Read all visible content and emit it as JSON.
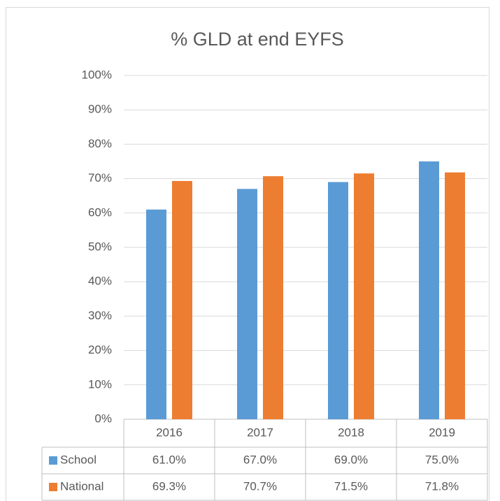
{
  "chart_data": {
    "type": "bar",
    "title": "% GLD at end EYFS",
    "categories": [
      "2016",
      "2017",
      "2018",
      "2019"
    ],
    "series": [
      {
        "name": "School",
        "color": "#5b9bd5",
        "values": [
          61,
          67,
          69,
          75
        ],
        "value_labels": [
          "61.0%",
          "67.0%",
          "69.0%",
          "75.0%"
        ]
      },
      {
        "name": "National",
        "color": "#ed7d31",
        "values": [
          69.3,
          70.7,
          71.5,
          71.8
        ],
        "value_labels": [
          "69.3%",
          "70.7%",
          "71.5%",
          "71.8%"
        ]
      }
    ],
    "ylim": [
      0,
      100
    ],
    "yticks": [
      {
        "value": 0,
        "label": "0%"
      },
      {
        "value": 10,
        "label": "10%"
      },
      {
        "value": 20,
        "label": "20%"
      },
      {
        "value": 30,
        "label": "30%"
      },
      {
        "value": 40,
        "label": "40%"
      },
      {
        "value": 50,
        "label": "50%"
      },
      {
        "value": 60,
        "label": "60%"
      },
      {
        "value": 70,
        "label": "70%"
      },
      {
        "value": 80,
        "label": "80%"
      },
      {
        "value": 90,
        "label": "90%"
      },
      {
        "value": 100,
        "label": "100%"
      }
    ],
    "grid": true
  }
}
